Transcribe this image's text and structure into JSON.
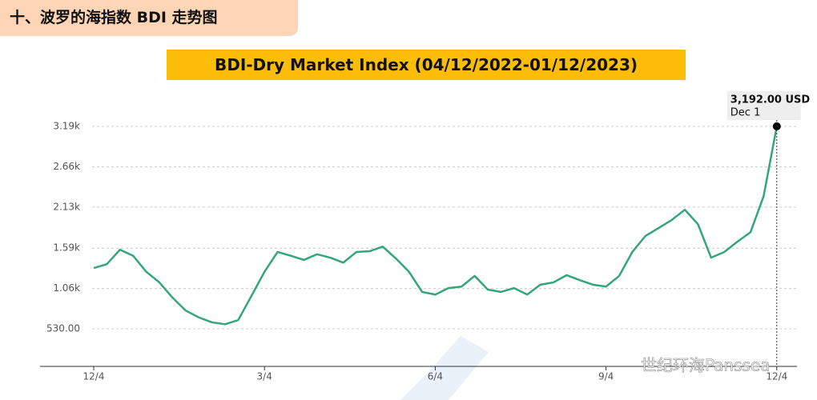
{
  "header": "十、波罗的海指数 BDI 走势图",
  "chart_data": {
    "type": "line",
    "title": "BDI-Dry Market Index (04/12/2022-01/12/2023)",
    "annotation": {
      "value_label": "3,192.00 USD",
      "date": "Dec 1"
    },
    "watermark": "世纪环海Panssea",
    "categories": [
      "12/4",
      null,
      null,
      null,
      null,
      null,
      null,
      null,
      null,
      null,
      null,
      null,
      null,
      "3/4",
      null,
      null,
      null,
      null,
      null,
      null,
      null,
      null,
      null,
      null,
      null,
      null,
      "6/4",
      null,
      null,
      null,
      null,
      null,
      null,
      null,
      null,
      null,
      null,
      null,
      null,
      "9/4",
      null,
      null,
      null,
      null,
      null,
      null,
      null,
      null,
      null,
      null,
      null,
      null,
      "12/4"
    ],
    "series": [
      {
        "name": "BDI",
        "color": "#35a57a",
        "values": [
          1329,
          1380,
          1570,
          1490,
          1280,
          1140,
          940,
          770,
          680,
          615,
          590,
          645,
          960,
          1280,
          1540,
          1490,
          1435,
          1510,
          1465,
          1400,
          1540,
          1550,
          1610,
          1455,
          1280,
          1015,
          980,
          1065,
          1085,
          1225,
          1045,
          1015,
          1065,
          980,
          1110,
          1140,
          1235,
          1170,
          1110,
          1085,
          1225,
          1540,
          1750,
          1855,
          1960,
          2095,
          1905,
          1465,
          1540,
          1675,
          1800,
          2275,
          3192
        ]
      }
    ],
    "ylim": [
      36,
      3590
    ],
    "yticks": [
      {
        "value": 530,
        "label": "530.00"
      },
      {
        "value": 1060,
        "label": "1.06k"
      },
      {
        "value": 1590,
        "label": "1.59k"
      },
      {
        "value": 2130,
        "label": "2.13k"
      },
      {
        "value": 2660,
        "label": "2.66k"
      },
      {
        "value": 3190,
        "label": "3.19k"
      }
    ],
    "grid": true
  }
}
